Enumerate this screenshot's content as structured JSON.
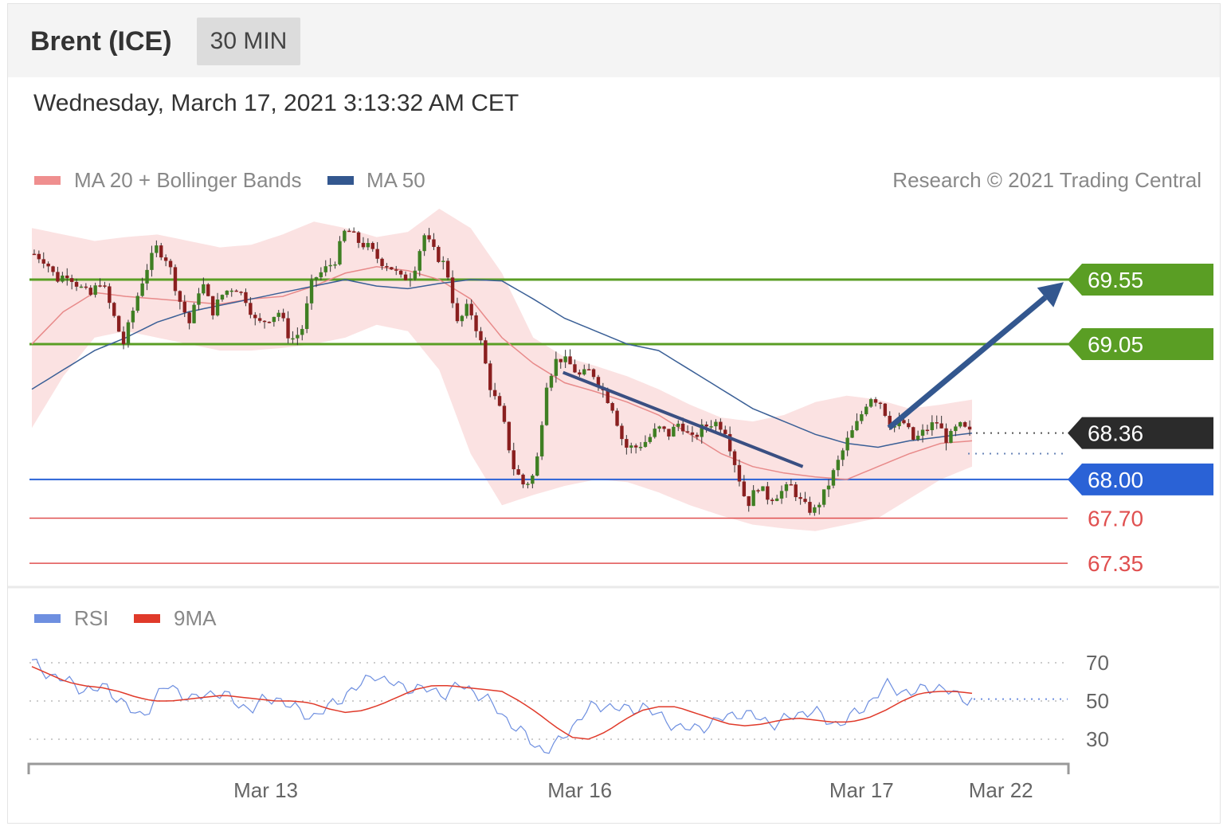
{
  "header": {
    "title": "Brent (ICE)",
    "interval": "30 MIN"
  },
  "timestamp": "Wednesday, March 17, 2021 3:13:32 AM CET",
  "legend": {
    "ma20_bb": "MA 20 + Bollinger Bands",
    "ma50": "MA 50",
    "copyright": "Research © 2021 Trading Central",
    "rsi": "RSI",
    "rsi_ma": "9MA"
  },
  "colors": {
    "resistance": "#5a9e24",
    "pivot": "#2a62d6",
    "support": "#e05050",
    "last_price": "#2b2b2b",
    "ma50": "#3a5f96",
    "bollinger_fill": "#fbe2e2",
    "ma20": "#e88a8a",
    "arrow": "#33578f",
    "rsi": "#6e8fe0",
    "rsi_ma": "#e03a2a",
    "candle_up": "#3f7f23",
    "candle_down": "#8a1f1f"
  },
  "chart_data": {
    "type": "candlestick",
    "price_range": [
      67.32,
      70.1
    ],
    "levels": [
      {
        "value": 69.55,
        "label": "69.55",
        "kind": "resistance"
      },
      {
        "value": 69.05,
        "label": "69.05",
        "kind": "resistance"
      },
      {
        "value": 68.36,
        "label": "68.36",
        "kind": "last"
      },
      {
        "value": 68.0,
        "label": "68.00",
        "kind": "pivot"
      },
      {
        "value": 67.7,
        "label": "67.70",
        "kind": "support"
      },
      {
        "value": 67.35,
        "label": "67.35",
        "kind": "support"
      }
    ],
    "candle_count": 200,
    "close_path": [
      69.75,
      69.7,
      69.55,
      69.6,
      69.5,
      69.42,
      69.55,
      69.3,
      69.05,
      69.35,
      69.62,
      69.8,
      69.7,
      69.4,
      69.2,
      69.55,
      69.3,
      69.45,
      69.5,
      69.4,
      69.2,
      69.25,
      69.3,
      69.08,
      69.15,
      69.55,
      69.62,
      69.7,
      69.95,
      69.85,
      69.8,
      69.7,
      69.65,
      69.55,
      69.6,
      69.9,
      69.75,
      69.65,
      69.2,
      69.35,
      69.1,
      68.7,
      68.5,
      68.1,
      67.95,
      68.05,
      68.75,
      68.95,
      68.9,
      68.8,
      68.85,
      68.7,
      68.55,
      68.25,
      68.25,
      68.3,
      68.4,
      68.35,
      68.45,
      68.3,
      68.4,
      68.45,
      68.4,
      68.1,
      67.8,
      67.95,
      67.85,
      67.9,
      67.95,
      67.8,
      67.75,
      67.9,
      68.1,
      68.3,
      68.45,
      68.65,
      68.6,
      68.4,
      68.45,
      68.3,
      68.38,
      68.45,
      68.3,
      68.42,
      68.36
    ],
    "ma50_path": [
      68.7,
      68.85,
      69.0,
      69.1,
      69.22,
      69.3,
      69.35,
      69.4,
      69.45,
      69.5,
      69.55,
      69.5,
      69.48,
      69.52,
      69.55,
      69.54,
      69.4,
      69.25,
      69.15,
      69.05,
      69.0,
      68.85,
      68.7,
      68.55,
      68.45,
      68.35,
      68.28,
      68.25,
      68.3,
      68.33,
      68.36
    ],
    "ma20_path": [
      69.05,
      69.3,
      69.45,
      69.42,
      69.4,
      69.38,
      69.36,
      69.4,
      69.42,
      69.5,
      69.6,
      69.65,
      69.62,
      69.55,
      69.4,
      69.1,
      68.9,
      68.75,
      68.68,
      68.6,
      68.5,
      68.35,
      68.2,
      68.1,
      68.05,
      68.02,
      68.0,
      68.1,
      68.2,
      68.28,
      68.3
    ],
    "bb_upper": [
      69.95,
      69.9,
      69.85,
      69.88,
      69.9,
      69.85,
      69.8,
      69.82,
      69.9,
      70.0,
      69.95,
      69.88,
      69.92,
      70.1,
      69.95,
      69.6,
      69.1,
      68.95,
      68.88,
      68.8,
      68.7,
      68.58,
      68.48,
      68.45,
      68.5,
      68.6,
      68.65,
      68.62,
      68.55,
      68.58,
      68.62
    ],
    "bb_lower": [
      68.4,
      68.8,
      69.1,
      69.15,
      69.1,
      69.05,
      69.0,
      69.0,
      69.02,
      69.05,
      69.1,
      69.2,
      69.15,
      68.85,
      68.2,
      67.8,
      67.88,
      67.95,
      68.0,
      67.98,
      67.9,
      67.8,
      67.72,
      67.65,
      67.62,
      67.6,
      67.65,
      67.7,
      67.85,
      68.0,
      68.1
    ],
    "trendline": {
      "from": [
        0.565,
        68.83
      ],
      "to": [
        0.82,
        68.1
      ]
    },
    "forecast_arrow": {
      "from": [
        0.91,
        68.4
      ],
      "to": [
        1.0,
        69.53
      ]
    },
    "rsi": {
      "range": [
        20,
        80
      ],
      "levels": [
        70,
        50,
        30
      ],
      "rsi_path": [
        70,
        66,
        62,
        60,
        57,
        55,
        58,
        52,
        45,
        42,
        50,
        58,
        56,
        50,
        53,
        55,
        52,
        48,
        46,
        50,
        52,
        48,
        44,
        42,
        45,
        50,
        55,
        58,
        65,
        60,
        58,
        57,
        56,
        55,
        54,
        58,
        56,
        52,
        46,
        40,
        34,
        28,
        24,
        27,
        35,
        42,
        47,
        48,
        46,
        45,
        48,
        43,
        40,
        36,
        35,
        37,
        39,
        42,
        44,
        42,
        40,
        38,
        41,
        44,
        45,
        40,
        38,
        41,
        46,
        52,
        58,
        56,
        54,
        56,
        58,
        55,
        52,
        51
      ],
      "ma_path": [
        68,
        64,
        60,
        58,
        57,
        55,
        52,
        50,
        50,
        51,
        52,
        53,
        52,
        51,
        50,
        50,
        49,
        46,
        44,
        45,
        48,
        52,
        56,
        58,
        58,
        57,
        56,
        55,
        50,
        44,
        37,
        31,
        30,
        34,
        40,
        45,
        47,
        47,
        44,
        41,
        38,
        37,
        38,
        40,
        41,
        40,
        39,
        39,
        41,
        45,
        50,
        54,
        55,
        55,
        54
      ],
      "last": 51
    },
    "x_ticks": [
      {
        "label": "Mar 13",
        "pos": 0.228
      },
      {
        "label": "Mar 16",
        "pos": 0.53
      },
      {
        "label": "Mar 17",
        "pos": 0.801
      },
      {
        "label": "Mar 22",
        "pos": 0.935
      }
    ]
  }
}
